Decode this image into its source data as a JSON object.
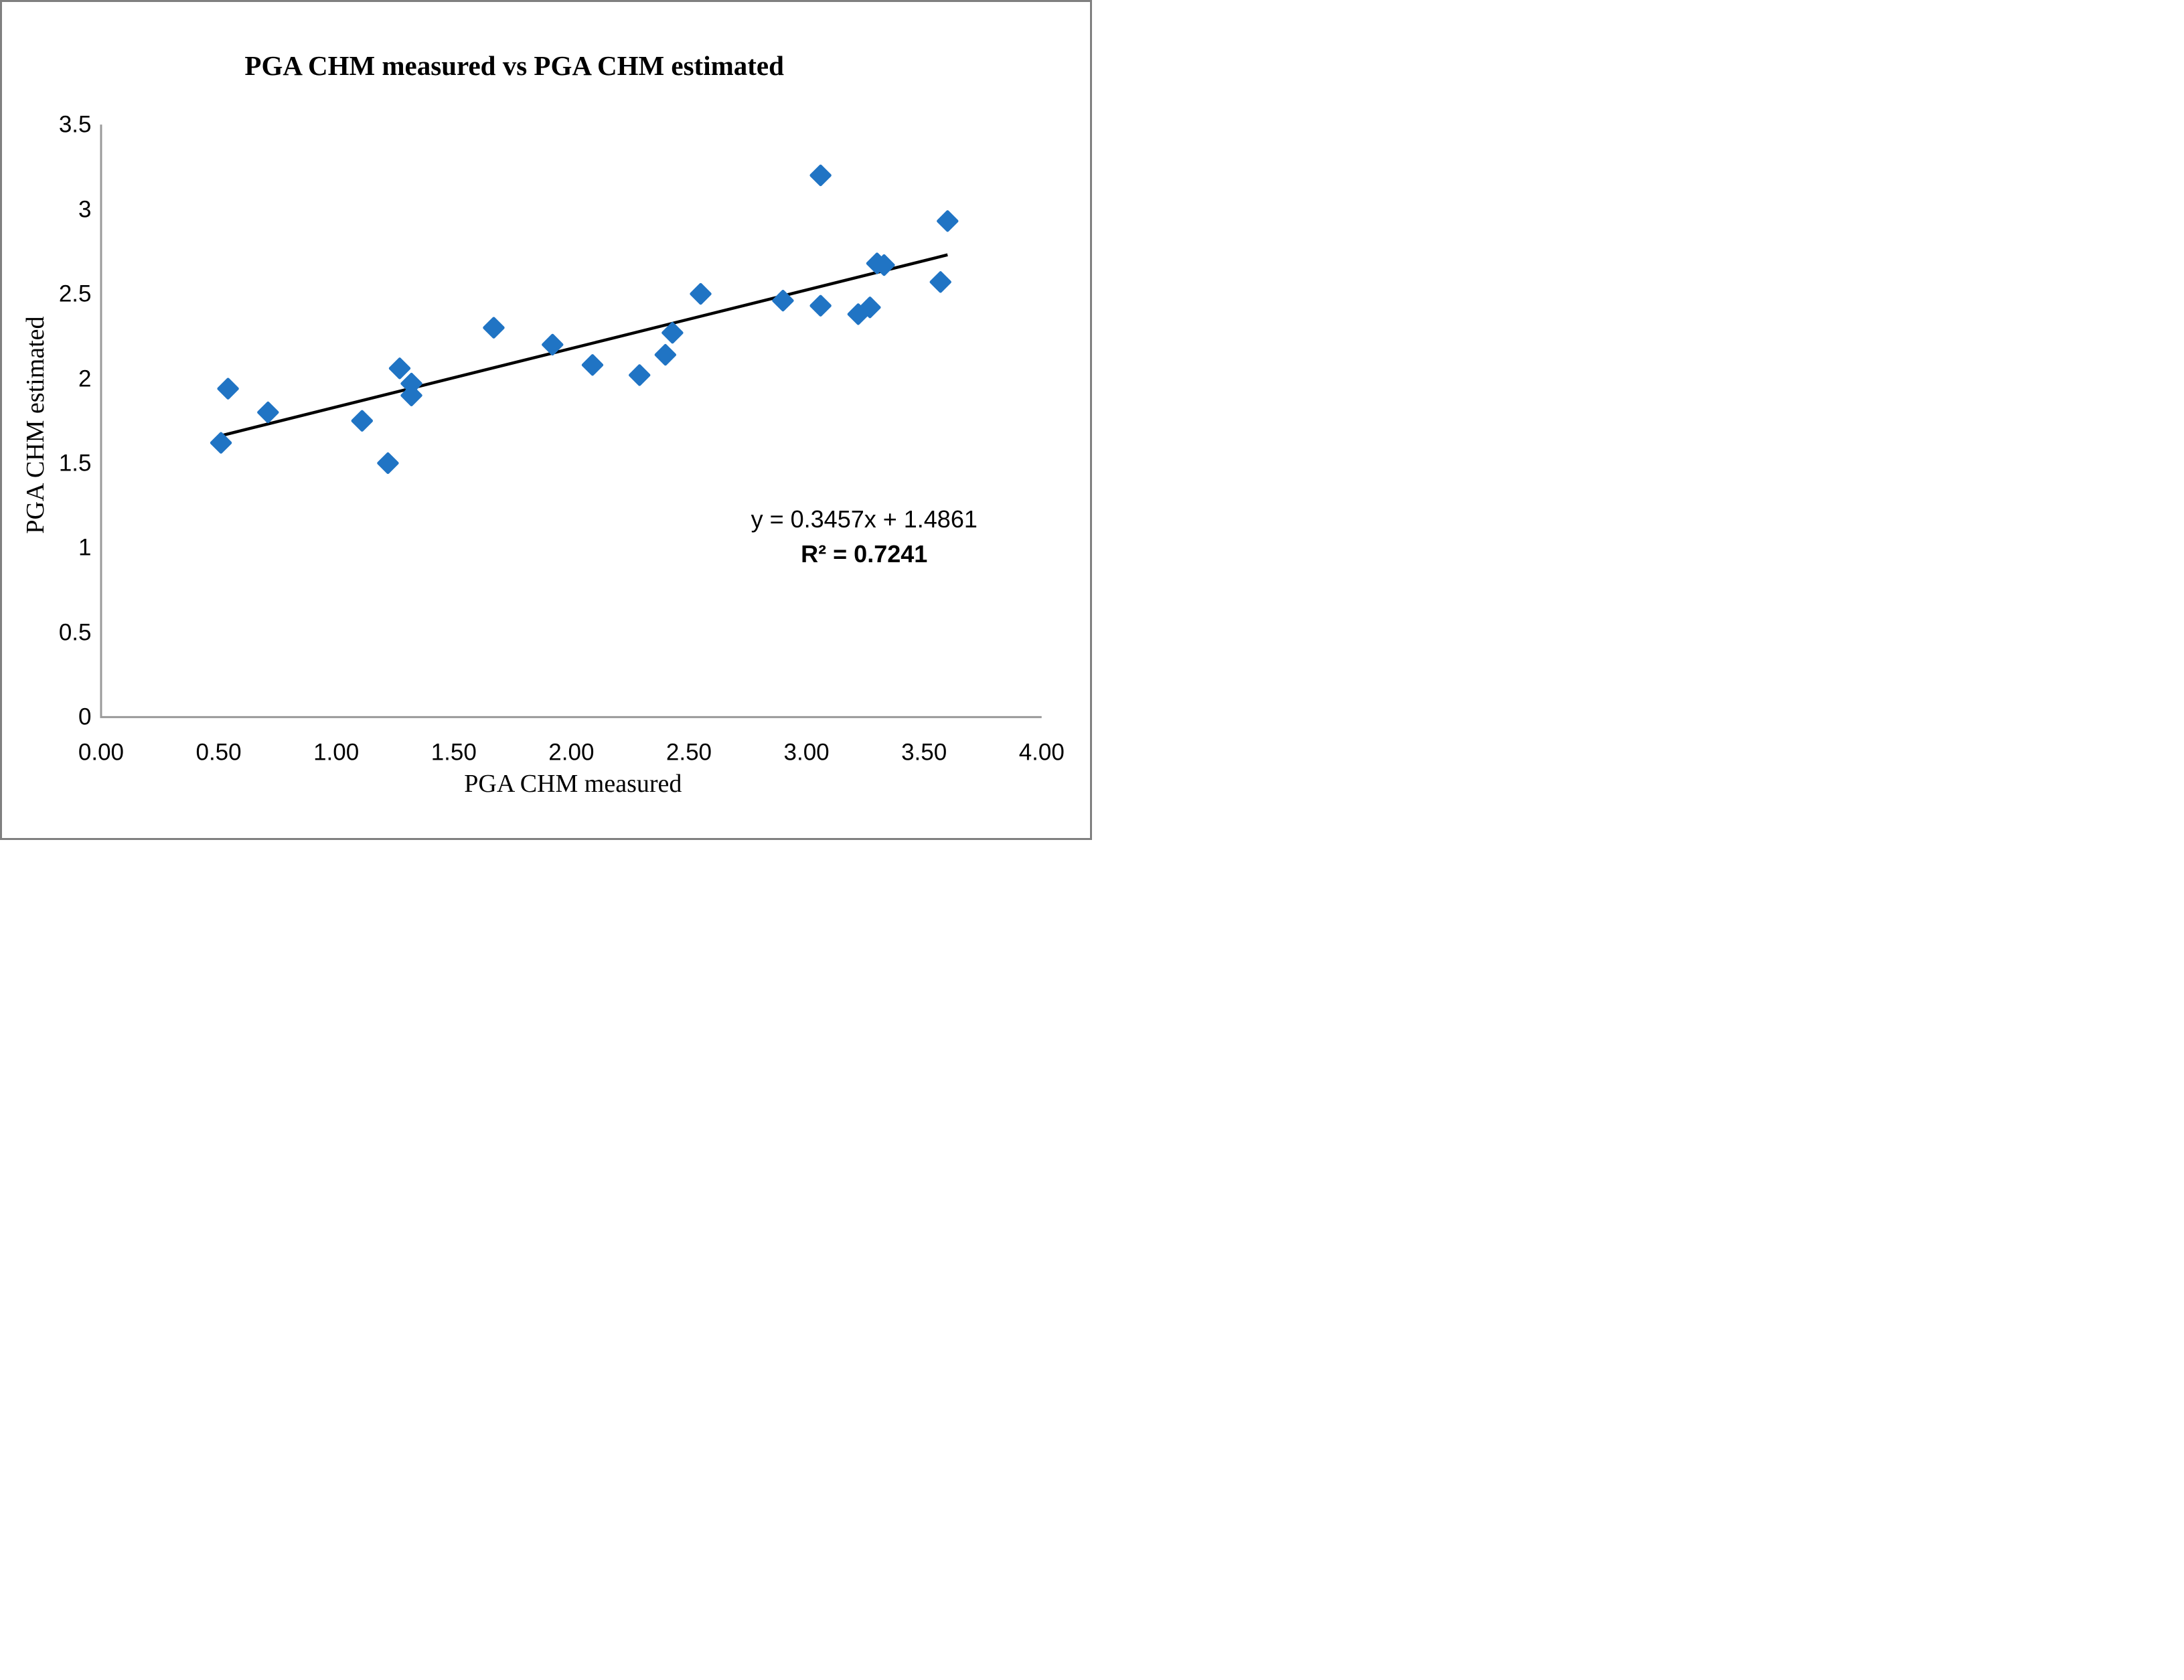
{
  "title": "PGA CHM measured vs PGA CHM estimated",
  "x_axis": {
    "title": "PGA CHM measured",
    "ticks": [
      "0.00",
      "0.50",
      "1.00",
      "1.50",
      "2.00",
      "2.50",
      "3.00",
      "3.50",
      "4.00"
    ]
  },
  "y_axis": {
    "title": "PGA CHM estimated",
    "ticks": [
      "0",
      "0.5",
      "1",
      "1.5",
      "2",
      "2.5",
      "3",
      "3.5"
    ]
  },
  "annotation": {
    "equation": "y = 0.3457x + 1.4861",
    "r_squared": "R² = 0.7241"
  },
  "colors": {
    "marker": "#2074C4",
    "trendline": "#000000",
    "axis_line": "#9A9A9A",
    "frame_border": "#808080",
    "background": "#FFFFFF",
    "text": "#000000"
  },
  "chart_data": {
    "type": "scatter",
    "title": "PGA CHM measured vs PGA CHM estimated",
    "xlabel": "PGA CHM measured",
    "ylabel": "PGA CHM estimated",
    "xlim": [
      0,
      4
    ],
    "ylim": [
      0,
      3.5
    ],
    "x_tick_step": 0.5,
    "y_tick_step": 0.5,
    "grid": "off",
    "legend": "none",
    "marker_shape": "diamond",
    "points": [
      [
        0.51,
        1.62
      ],
      [
        0.54,
        1.94
      ],
      [
        0.71,
        1.8
      ],
      [
        1.11,
        1.75
      ],
      [
        1.22,
        1.5
      ],
      [
        1.27,
        2.06
      ],
      [
        1.32,
        1.97
      ],
      [
        1.32,
        1.9
      ],
      [
        1.67,
        2.3
      ],
      [
        1.92,
        2.2
      ],
      [
        2.09,
        2.08
      ],
      [
        2.29,
        2.02
      ],
      [
        2.4,
        2.14
      ],
      [
        2.43,
        2.27
      ],
      [
        2.55,
        2.5
      ],
      [
        2.9,
        2.46
      ],
      [
        3.06,
        3.2
      ],
      [
        3.06,
        2.43
      ],
      [
        3.22,
        2.38
      ],
      [
        3.27,
        2.42
      ],
      [
        3.3,
        2.68
      ],
      [
        3.33,
        2.67
      ],
      [
        3.57,
        2.57
      ],
      [
        3.6,
        2.93
      ]
    ],
    "trendline": {
      "type": "linear",
      "slope": 0.3457,
      "intercept": 1.4861,
      "r2": 0.7241,
      "x_start": 0.51,
      "x_end": 3.6
    }
  }
}
